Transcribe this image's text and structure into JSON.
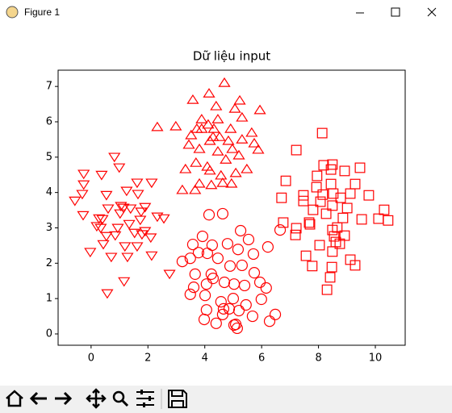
{
  "window": {
    "title": "Figure 1"
  },
  "chart_data": {
    "type": "scatter",
    "title": "Dữ liệu input",
    "xlim": [
      -1.16,
      11.05
    ],
    "ylim": [
      -0.32,
      7.46
    ],
    "xticks": [
      0,
      2,
      4,
      6,
      8,
      10
    ],
    "yticks": [
      0,
      1,
      2,
      3,
      4,
      5,
      6,
      7
    ],
    "grid": false,
    "series": [
      {
        "marker": "triangle-down",
        "color": "#ff0000",
        "x": [
          -0.26,
          -0.26,
          -0.31,
          -0.57,
          -0.28,
          0.37,
          0.82,
          0.99,
          0.54,
          0.6,
          1.25,
          1.62,
          1.65,
          2.13,
          1.05,
          0.28,
          0.4,
          0.34,
          0.2,
          1.02,
          1.14,
          1.39,
          1.76,
          1.9,
          1.73,
          2.33,
          2.56,
          -0.03,
          0.43,
          0.71,
          0.54,
          0.85,
          1.19,
          1.28,
          1.62,
          1.79,
          2.1,
          2.13,
          1.16,
          0.57,
          2.76,
          1.9,
          0.94,
          1.34,
          1.53
        ],
        "values": [
          4.54,
          4.24,
          3.97,
          3.78,
          3.37,
          4.51,
          5.02,
          4.72,
          3.94,
          3.56,
          4.06,
          4.29,
          3.97,
          4.29,
          3.63,
          3.28,
          3.26,
          3.01,
          3.06,
          3.42,
          3.58,
          3.56,
          3.47,
          3.6,
          3.24,
          3.33,
          3.28,
          2.33,
          2.55,
          2.19,
          2.78,
          2.8,
          2.49,
          2.19,
          2.49,
          2.83,
          2.74,
          2.23,
          1.5,
          1.16,
          1.71,
          2.92,
          3.01,
          3.12,
          2.87
        ]
      },
      {
        "marker": "triangle-up",
        "color": "#ff0000",
        "x": [
          4.15,
          4.69,
          3.58,
          4.4,
          5.23,
          5.06,
          5.94,
          4.46,
          3.89,
          3.72,
          4.12,
          4.32,
          4.91,
          5.31,
          2.98,
          2.33,
          4.18,
          4.52,
          4.83,
          5.65,
          3.44,
          3.81,
          4.46,
          4.97,
          5.88,
          3.69,
          4.09,
          4.74,
          5.2,
          5.48,
          3.32,
          4.18,
          4.57,
          5.09,
          3.81,
          4.63,
          4.94,
          3.21,
          3.66,
          4.23,
          3.89,
          4.29,
          3.52,
          5.74,
          5.31
        ],
        "values": [
          6.79,
          7.09,
          6.61,
          6.43,
          6.59,
          6.36,
          6.32,
          6.06,
          6.06,
          5.79,
          5.91,
          5.79,
          5.79,
          6.11,
          5.86,
          5.84,
          5.45,
          5.56,
          5.45,
          5.68,
          5.34,
          5.22,
          5.15,
          5.22,
          5.2,
          4.83,
          4.72,
          4.92,
          5.04,
          4.65,
          4.65,
          4.61,
          4.47,
          4.54,
          4.24,
          4.26,
          4.24,
          4.06,
          4.06,
          4.2,
          5.79,
          5.56,
          5.61,
          5.38,
          5.49
        ]
      },
      {
        "marker": "circle",
        "color": "#ff0000",
        "x": [
          4.15,
          4.63,
          5.26,
          3.92,
          3.58,
          4.26,
          4.8,
          5.54,
          4.09,
          4.46,
          5.17,
          5.71,
          6.22,
          6.65,
          3.21,
          3.49,
          3.66,
          4.23,
          4.89,
          5.31,
          5.74,
          3.61,
          4.29,
          4.69,
          5.03,
          5.4,
          5.94,
          6.16,
          3.49,
          4.01,
          4.57,
          5.0,
          5.45,
          5.99,
          4.06,
          4.86,
          5.2,
          5.68,
          4.63,
          3.98,
          4.4,
          5.09,
          5.14,
          6.28,
          6.48,
          5.03,
          4.66,
          3.78,
          4.06
        ],
        "values": [
          3.37,
          3.4,
          2.92,
          2.76,
          2.53,
          2.51,
          2.55,
          2.67,
          2.28,
          2.14,
          2.39,
          2.26,
          2.46,
          2.94,
          2.05,
          2.14,
          1.69,
          1.69,
          1.92,
          1.94,
          1.73,
          1.32,
          1.57,
          1.46,
          1.41,
          1.37,
          1.46,
          1.3,
          1.12,
          1.09,
          0.91,
          1.0,
          0.82,
          0.98,
          0.68,
          0.71,
          0.66,
          0.5,
          0.55,
          0.41,
          0.3,
          0.27,
          0.16,
          0.36,
          0.55,
          0.25,
          0.71,
          2.3,
          1.41
        ]
      },
      {
        "marker": "square",
        "color": "#ff0000",
        "x": [
          8.13,
          7.22,
          8.49,
          8.18,
          8.44,
          7.95,
          9.46,
          8.92,
          6.85,
          8.44,
          7.93,
          8.52,
          9.29,
          6.7,
          7.47,
          8.15,
          8.78,
          9.12,
          9.77,
          7.47,
          8.07,
          8.49,
          9.01,
          7.81,
          8.27,
          8.86,
          9.52,
          10.31,
          10.11,
          10.45,
          7.22,
          7.67,
          8.49,
          8.66,
          8.92,
          8.61,
          8.04,
          8.49,
          8.75,
          7.56,
          7.78,
          9.12,
          9.29,
          8.47,
          8.41,
          8.3,
          7.7,
          7.19,
          6.76,
          8.55
        ],
        "values": [
          5.68,
          5.2,
          4.79,
          4.77,
          4.65,
          4.47,
          4.7,
          4.61,
          4.33,
          4.24,
          4.15,
          3.97,
          4.24,
          3.85,
          3.92,
          3.94,
          3.85,
          3.97,
          3.92,
          3.76,
          3.74,
          3.63,
          3.56,
          3.51,
          3.4,
          3.28,
          3.24,
          3.51,
          3.26,
          3.21,
          2.99,
          3.15,
          2.94,
          3.01,
          2.78,
          2.6,
          2.51,
          2.33,
          2.55,
          2.21,
          1.92,
          2.1,
          1.94,
          1.89,
          1.6,
          1.25,
          3.1,
          2.8,
          3.15,
          2.76
        ]
      }
    ]
  }
}
